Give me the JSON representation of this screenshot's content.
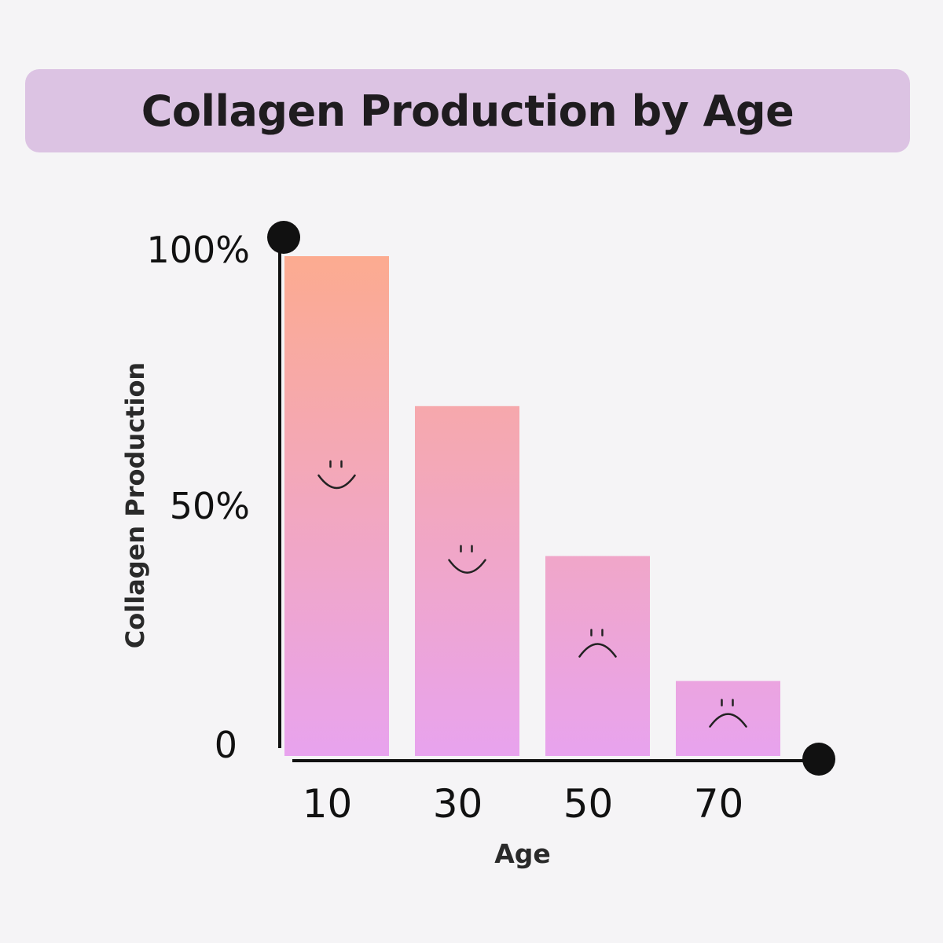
{
  "colors": {
    "background": "#f5f4f6",
    "title_banner": "#dcc3e3",
    "bar_top": "#fcab90",
    "bar_bottom": "#e8a3ee",
    "axis": "#111111"
  },
  "chart_data": {
    "type": "bar",
    "title": "Collagen Production by Age",
    "xlabel": "Age",
    "ylabel": "Collagen Production",
    "categories": [
      "10",
      "30",
      "50",
      "70"
    ],
    "values": [
      100,
      70,
      40,
      15
    ],
    "ylim": [
      0,
      100
    ],
    "y_ticks": [
      {
        "value": 0,
        "label": "0"
      },
      {
        "value": 50,
        "label": "50%"
      },
      {
        "value": 100,
        "label": "100%"
      }
    ],
    "annotations": [
      "smiley-face",
      "smiley-face",
      "frowning-face",
      "frowning-face"
    ],
    "grid": false,
    "legend": "none"
  }
}
